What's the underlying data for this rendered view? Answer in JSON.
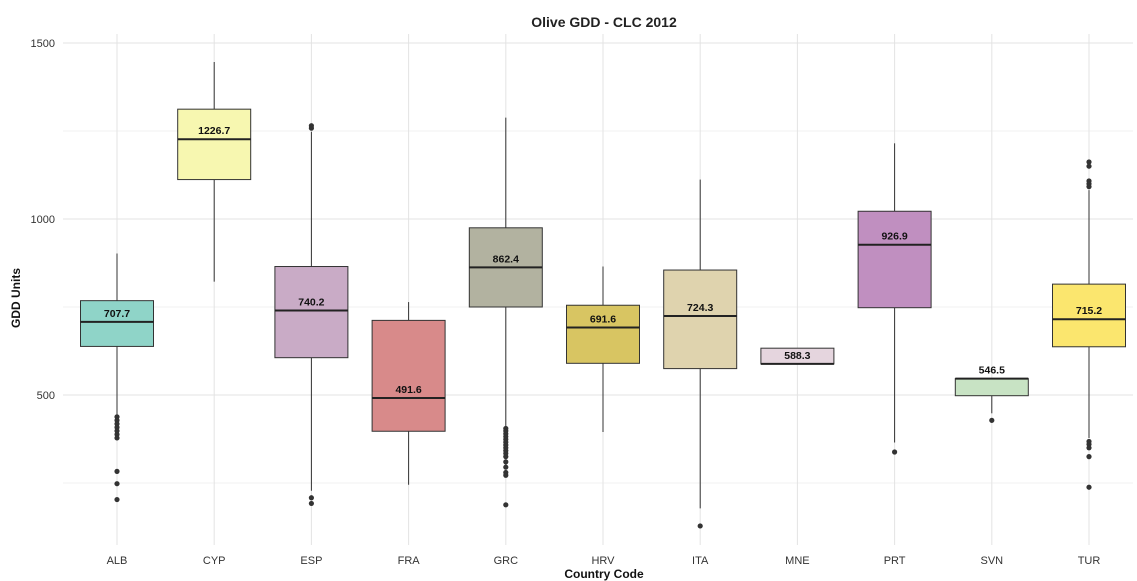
{
  "chart_data": {
    "type": "box",
    "title": "Olive GDD - CLC 2012",
    "xlabel": "Country Code",
    "ylabel": "GDD Units",
    "ylim": [
      120,
      1510
    ],
    "yticks": [
      500,
      1000,
      1500
    ],
    "grid": true,
    "legend": "none",
    "categories": [
      "ALB",
      "CYP",
      "ESP",
      "FRA",
      "GRC",
      "HRV",
      "ITA",
      "MNE",
      "PRT",
      "SVN",
      "TUR"
    ],
    "boxes": [
      {
        "category": "ALB",
        "min": 440,
        "q1": 638,
        "median": 707.7,
        "q3": 768,
        "max": 902,
        "median_label": "707.7",
        "color": "#8FD4C8",
        "outliers": [
          438,
          428,
          418,
          408,
          398,
          388,
          378,
          283,
          248,
          203
        ]
      },
      {
        "category": "CYP",
        "min": 822,
        "q1": 1112,
        "median": 1226.7,
        "q3": 1312,
        "max": 1446,
        "median_label": "1226.7",
        "color": "#F7F7B0",
        "outliers": []
      },
      {
        "category": "ESP",
        "min": 228,
        "q1": 606,
        "median": 740.2,
        "q3": 865,
        "max": 1248,
        "median_label": "740.2",
        "color": "#C9ABC6",
        "outliers": [
          1265,
          1258,
          208,
          192
        ]
      },
      {
        "category": "FRA",
        "min": 245,
        "q1": 397,
        "median": 491.6,
        "q3": 712,
        "max": 764,
        "median_label": "491.6",
        "color": "#D88A8A",
        "outliers": []
      },
      {
        "category": "GRC",
        "min": 410,
        "q1": 750,
        "median": 862.4,
        "q3": 975,
        "max": 1288,
        "median_label": "862.4",
        "color": "#B2B2A0",
        "outliers": [
          405,
          398,
          390,
          382,
          374,
          366,
          358,
          350,
          342,
          334,
          325,
          310,
          295,
          280,
          272,
          188
        ]
      },
      {
        "category": "HRV",
        "min": 395,
        "q1": 590,
        "median": 691.6,
        "q3": 755,
        "max": 865,
        "median_label": "691.6",
        "color": "#D8C562",
        "outliers": []
      },
      {
        "category": "ITA",
        "min": 178,
        "q1": 575,
        "median": 724.3,
        "q3": 855,
        "max": 1112,
        "median_label": "724.3",
        "color": "#DFD3AE",
        "outliers": [
          128
        ]
      },
      {
        "category": "MNE",
        "min": 588.3,
        "q1": 588.3,
        "median": 588.3,
        "q3": 633,
        "max": 633,
        "median_label": "588.3",
        "color": "#E5D5DE",
        "outliers": []
      },
      {
        "category": "PRT",
        "min": 365,
        "q1": 748,
        "median": 926.9,
        "q3": 1022,
        "max": 1215,
        "median_label": "926.9",
        "color": "#C08FC0",
        "outliers": [
          338
        ]
      },
      {
        "category": "SVN",
        "min": 448,
        "q1": 498,
        "median": 546.5,
        "q3": 546.5,
        "max": 546.5,
        "median_label": "546.5",
        "color": "#C8E3C4",
        "outliers": [
          428
        ]
      },
      {
        "category": "TUR",
        "min": 378,
        "q1": 637,
        "median": 715.2,
        "q3": 815,
        "max": 1082,
        "median_label": "715.2",
        "color": "#FBE66E",
        "outliers": [
          1162,
          1150,
          1108,
          1100,
          1092,
          368,
          360,
          350,
          325,
          238
        ]
      }
    ]
  }
}
